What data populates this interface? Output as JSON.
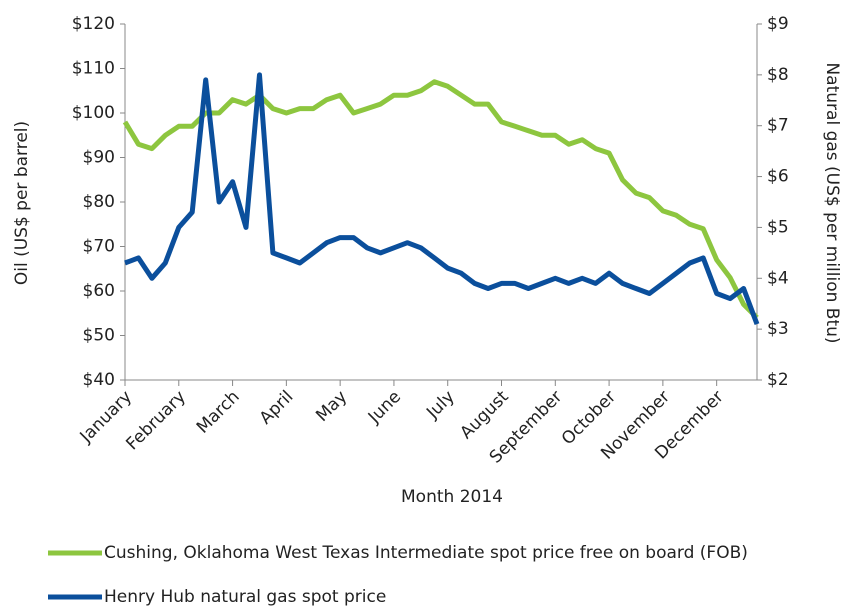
{
  "chart_data": {
    "type": "line",
    "x_label": "Month 2014",
    "y_label": "Oil (US$ per barrel)",
    "y2_label": "Natural gas (US$ per million Btu)",
    "categories": [
      "January",
      null,
      null,
      null,
      "February",
      null,
      null,
      null,
      "March",
      null,
      null,
      null,
      "April",
      null,
      null,
      null,
      "May",
      null,
      null,
      null,
      "June",
      null,
      null,
      null,
      "July",
      null,
      null,
      null,
      "August",
      null,
      null,
      null,
      "September",
      null,
      null,
      null,
      "October",
      null,
      null,
      null,
      "November",
      null,
      null,
      null,
      "December",
      null,
      null,
      null
    ],
    "series": [
      {
        "name": "Cushing, Oklahoma West Texas Intermediate spot price free on board (FOB)",
        "color": "#8dc63f",
        "values": [
          98,
          93,
          92,
          95,
          97,
          97,
          100,
          100,
          103,
          102,
          104,
          101,
          100,
          101,
          101,
          103,
          104,
          100,
          101,
          102,
          104,
          104,
          105,
          107,
          106,
          104,
          102,
          102,
          98,
          97,
          96,
          95,
          95,
          93,
          94,
          92,
          91,
          85,
          82,
          81,
          78,
          77,
          75,
          74,
          67,
          63,
          57,
          54
        ]
      },
      {
        "name": "Henry Hub natural gas spot price",
        "color": "#0b4f9c",
        "axis": "y2",
        "values": [
          4.3,
          4.4,
          4.0,
          4.3,
          5.0,
          5.3,
          7.9,
          5.5,
          5.9,
          5.0,
          8.0,
          4.5,
          4.4,
          4.3,
          4.5,
          4.7,
          4.8,
          4.8,
          4.6,
          4.5,
          4.6,
          4.7,
          4.6,
          4.4,
          4.2,
          4.1,
          3.9,
          3.8,
          3.9,
          3.9,
          3.8,
          3.9,
          4.0,
          3.9,
          4.0,
          3.9,
          4.1,
          3.9,
          3.8,
          3.7,
          3.9,
          4.1,
          4.3,
          4.4,
          3.7,
          3.6,
          3.8,
          3.1
        ]
      }
    ],
    "ylim": [
      40,
      120
    ],
    "yticks": [
      {
        "value": 40,
        "label": "$40"
      },
      {
        "value": 50,
        "label": "$50"
      },
      {
        "value": 60,
        "label": "$60"
      },
      {
        "value": 70,
        "label": "$70"
      },
      {
        "value": 80,
        "label": "$80"
      },
      {
        "value": 90,
        "label": "$90"
      },
      {
        "value": 100,
        "label": "$100"
      },
      {
        "value": 110,
        "label": "$110"
      },
      {
        "value": 120,
        "label": "$120"
      }
    ],
    "y2lim": [
      2,
      9
    ],
    "y2ticks": [
      {
        "value": 2,
        "label": "$2"
      },
      {
        "value": 3,
        "label": "$3"
      },
      {
        "value": 4,
        "label": "$4"
      },
      {
        "value": 5,
        "label": "$5"
      },
      {
        "value": 6,
        "label": "$6"
      },
      {
        "value": 7,
        "label": "$7"
      },
      {
        "value": 8,
        "label": "$8"
      },
      {
        "value": 9,
        "label": "$9"
      }
    ]
  }
}
